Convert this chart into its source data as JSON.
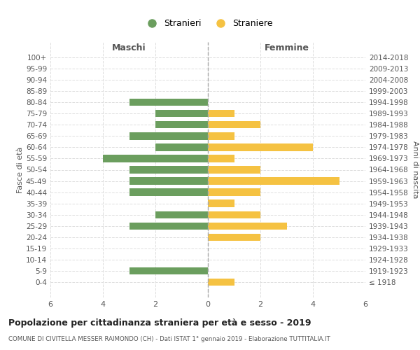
{
  "age_groups": [
    "100+",
    "95-99",
    "90-94",
    "85-89",
    "80-84",
    "75-79",
    "70-74",
    "65-69",
    "60-64",
    "55-59",
    "50-54",
    "45-49",
    "40-44",
    "35-39",
    "30-34",
    "25-29",
    "20-24",
    "15-19",
    "10-14",
    "5-9",
    "0-4"
  ],
  "birth_years": [
    "≤ 1918",
    "1919-1923",
    "1924-1928",
    "1929-1933",
    "1934-1938",
    "1939-1943",
    "1944-1948",
    "1949-1953",
    "1954-1958",
    "1959-1963",
    "1964-1968",
    "1969-1973",
    "1974-1978",
    "1979-1983",
    "1984-1988",
    "1989-1993",
    "1994-1998",
    "1999-2003",
    "2004-2008",
    "2009-2013",
    "2014-2018"
  ],
  "maschi": [
    0,
    0,
    0,
    0,
    3,
    2,
    2,
    3,
    2,
    4,
    3,
    3,
    3,
    0,
    2,
    3,
    0,
    0,
    0,
    3,
    0
  ],
  "femmine": [
    0,
    0,
    0,
    0,
    0,
    1,
    2,
    1,
    4,
    1,
    2,
    5,
    2,
    1,
    2,
    3,
    2,
    0,
    0,
    0,
    1
  ],
  "color_maschi": "#6b9e5e",
  "color_femmine": "#f5c242",
  "xlim": 6,
  "title": "Popolazione per cittadinanza straniera per età e sesso - 2019",
  "subtitle": "COMUNE DI CIVITELLA MESSER RAIMONDO (CH) - Dati ISTAT 1° gennaio 2019 - Elaborazione TUTTITALIA.IT",
  "xlabel_left": "Maschi",
  "xlabel_right": "Femmine",
  "ylabel_left": "Fasce di età",
  "ylabel_right": "Anni di nascita",
  "legend_maschi": "Stranieri",
  "legend_femmine": "Straniere",
  "background_color": "#ffffff",
  "grid_color": "#dddddd"
}
